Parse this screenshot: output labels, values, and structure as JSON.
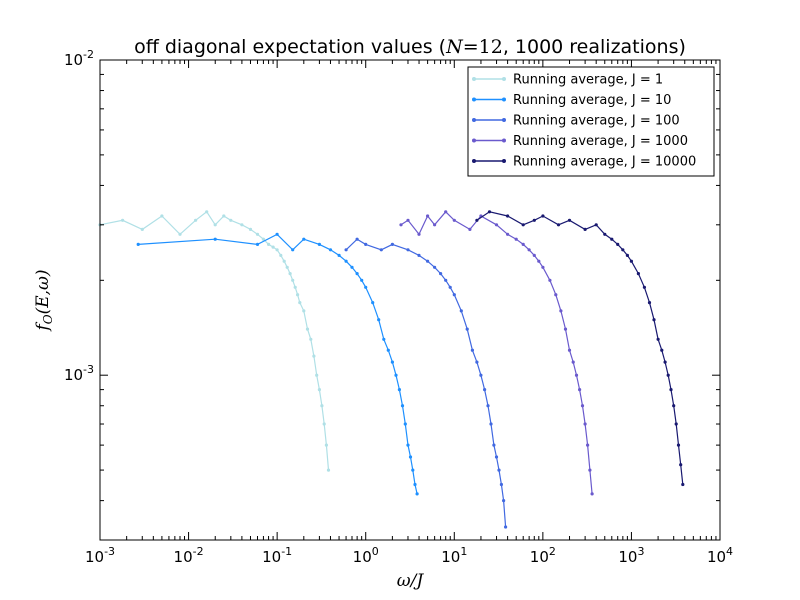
{
  "chart_data": {
    "type": "line",
    "title": "off diagonal expectation values (N=12, 1000 realizations)",
    "xlabel": "ω/J",
    "ylabel": "f_O(E,ω)",
    "xscale": "log",
    "yscale": "log",
    "xlim": [
      0.001,
      10000
    ],
    "ylim": [
      0.0003,
      0.01
    ],
    "x_ticks": [
      0.001,
      0.01,
      0.1,
      1,
      10,
      100,
      1000,
      10000
    ],
    "x_tick_labels": [
      "10-3",
      "10-2",
      "10-1",
      "100",
      "101",
      "102",
      "103",
      "104"
    ],
    "y_ticks": [
      0.001,
      0.01
    ],
    "y_tick_labels": [
      "10-3",
      "10-2"
    ],
    "legend_position": "top-right",
    "series": [
      {
        "name": "Running average, J = 1",
        "color": "#b0e0e6",
        "x": [
          0.001,
          0.0018,
          0.003,
          0.005,
          0.008,
          0.012,
          0.016,
          0.02,
          0.025,
          0.03,
          0.04,
          0.05,
          0.06,
          0.07,
          0.08,
          0.09,
          0.1,
          0.11,
          0.12,
          0.13,
          0.14,
          0.15,
          0.16,
          0.17,
          0.18,
          0.2,
          0.22,
          0.24,
          0.26,
          0.28,
          0.3,
          0.32,
          0.34,
          0.36,
          0.38
        ],
        "y": [
          0.003,
          0.0031,
          0.0029,
          0.0032,
          0.0028,
          0.0031,
          0.0033,
          0.003,
          0.0032,
          0.0031,
          0.003,
          0.0029,
          0.0028,
          0.0027,
          0.0026,
          0.00255,
          0.0025,
          0.0024,
          0.0023,
          0.0022,
          0.0021,
          0.002,
          0.0019,
          0.0018,
          0.0017,
          0.0016,
          0.0014,
          0.0013,
          0.00115,
          0.001,
          0.0009,
          0.0008,
          0.0007,
          0.0006,
          0.0005
        ]
      },
      {
        "name": "Running average, J = 10",
        "color": "#1e90ff",
        "x": [
          0.0027,
          0.02,
          0.06,
          0.1,
          0.15,
          0.2,
          0.3,
          0.4,
          0.5,
          0.6,
          0.7,
          0.8,
          0.9,
          1.0,
          1.2,
          1.4,
          1.6,
          1.8,
          2.0,
          2.2,
          2.4,
          2.6,
          2.8,
          3.0,
          3.2,
          3.4,
          3.6,
          3.8
        ],
        "y": [
          0.0026,
          0.0027,
          0.0026,
          0.0028,
          0.0025,
          0.0027,
          0.0026,
          0.0025,
          0.0024,
          0.0023,
          0.0022,
          0.0021,
          0.002,
          0.0019,
          0.0017,
          0.0015,
          0.0013,
          0.0012,
          0.0011,
          0.001,
          0.0009,
          0.0008,
          0.0007,
          0.0006,
          0.00055,
          0.0005,
          0.00045,
          0.00042
        ]
      },
      {
        "name": "Running average, J = 100",
        "color": "#4169e1",
        "x": [
          0.6,
          0.8,
          1.0,
          1.5,
          2.0,
          3.0,
          4.0,
          5.0,
          6.0,
          7.0,
          8.0,
          9.0,
          10.0,
          12.0,
          14.0,
          16.0,
          18.0,
          20.0,
          22.0,
          24.0,
          26.0,
          28.0,
          30.0,
          32.0,
          34.0,
          36.0,
          38.0
        ],
        "y": [
          0.0025,
          0.0027,
          0.0026,
          0.0025,
          0.0026,
          0.0025,
          0.0024,
          0.0023,
          0.0022,
          0.0021,
          0.002,
          0.0019,
          0.0018,
          0.0016,
          0.0014,
          0.0012,
          0.0011,
          0.001,
          0.0009,
          0.0008,
          0.0007,
          0.0006,
          0.00055,
          0.0005,
          0.00045,
          0.0004,
          0.00033
        ]
      },
      {
        "name": "Running average, J = 1000",
        "color": "#6a5acd",
        "x": [
          2.5,
          3.0,
          4.0,
          5.0,
          6.0,
          8.0,
          10.0,
          15.0,
          20.0,
          30.0,
          40.0,
          50.0,
          60.0,
          70.0,
          80.0,
          90.0,
          100.0,
          120.0,
          140.0,
          160.0,
          180.0,
          200.0,
          220.0,
          240.0,
          260.0,
          280.0,
          300.0,
          320.0,
          340.0,
          360.0
        ],
        "y": [
          0.003,
          0.0031,
          0.0028,
          0.0032,
          0.003,
          0.0033,
          0.0031,
          0.0029,
          0.0032,
          0.003,
          0.0028,
          0.0027,
          0.0026,
          0.0025,
          0.0024,
          0.0023,
          0.0022,
          0.002,
          0.0018,
          0.0016,
          0.0014,
          0.0012,
          0.0011,
          0.001,
          0.0009,
          0.0008,
          0.0007,
          0.0006,
          0.0005,
          0.00042
        ]
      },
      {
        "name": "Running average, J = 10000",
        "color": "#191970",
        "x": [
          18.0,
          25.0,
          40.0,
          60.0,
          80.0,
          100.0,
          150.0,
          200.0,
          300.0,
          400.0,
          500.0,
          600.0,
          700.0,
          800.0,
          900.0,
          1000.0,
          1200.0,
          1400.0,
          1600.0,
          1800.0,
          2000.0,
          2200.0,
          2400.0,
          2600.0,
          2800.0,
          3000.0,
          3200.0,
          3400.0,
          3600.0,
          3800.0
        ],
        "y": [
          0.0031,
          0.0033,
          0.0032,
          0.003,
          0.0031,
          0.0032,
          0.003,
          0.0031,
          0.0029,
          0.003,
          0.0028,
          0.0027,
          0.0026,
          0.0025,
          0.0024,
          0.0023,
          0.0021,
          0.0019,
          0.0017,
          0.0015,
          0.0013,
          0.0012,
          0.0011,
          0.001,
          0.0009,
          0.0008,
          0.0007,
          0.0006,
          0.00052,
          0.00045
        ]
      }
    ]
  }
}
